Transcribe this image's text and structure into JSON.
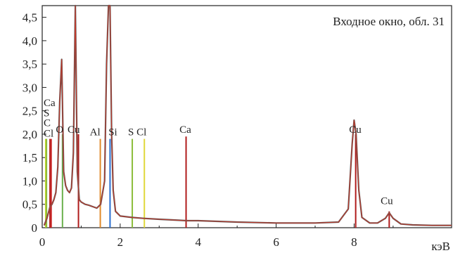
{
  "chart_data": {
    "type": "line",
    "title": "Входное окно, обл. 31",
    "xlabel": "кэВ",
    "ylabel": "",
    "xlim": [
      0,
      10.5
    ],
    "ylim": [
      0,
      4.75
    ],
    "x_ticks": [
      0,
      2,
      4,
      6,
      8
    ],
    "y_ticks": [
      0,
      0.5,
      1.0,
      1.5,
      2.0,
      2.5,
      3.0,
      3.5,
      4.0,
      4.5
    ],
    "x_tick_labels": [
      "0",
      "2",
      "4",
      "6",
      "8"
    ],
    "y_tick_labels": [
      "0",
      "0,5",
      "1,0",
      "1,5",
      "2,0",
      "2,5",
      "3,0",
      "3,5",
      "4,0",
      "4,5"
    ],
    "spectrum": {
      "x": [
        0.05,
        0.12,
        0.2,
        0.25,
        0.3,
        0.35,
        0.4,
        0.45,
        0.5,
        0.55,
        0.6,
        0.65,
        0.7,
        0.75,
        0.8,
        0.85,
        0.9,
        0.95,
        1.0,
        1.1,
        1.2,
        1.3,
        1.4,
        1.5,
        1.6,
        1.65,
        1.7,
        1.74,
        1.78,
        1.82,
        1.88,
        2.0,
        2.3,
        2.6,
        3.0,
        3.5,
        3.7,
        4.0,
        5.0,
        6.0,
        7.0,
        7.6,
        7.85,
        7.95,
        8.0,
        8.05,
        8.12,
        8.2,
        8.4,
        8.6,
        8.8,
        8.9,
        9.0,
        9.2,
        9.5,
        10.0,
        10.5
      ],
      "y": [
        0.05,
        0.2,
        0.45,
        0.5,
        0.6,
        0.75,
        1.3,
        2.7,
        3.6,
        1.2,
        0.9,
        0.8,
        0.75,
        0.85,
        1.6,
        4.8,
        1.2,
        0.6,
        0.55,
        0.5,
        0.48,
        0.45,
        0.42,
        0.5,
        1.0,
        3.5,
        4.8,
        4.8,
        2.0,
        0.8,
        0.35,
        0.25,
        0.22,
        0.2,
        0.18,
        0.16,
        0.15,
        0.15,
        0.12,
        0.1,
        0.1,
        0.12,
        0.4,
        1.8,
        2.3,
        2.0,
        0.8,
        0.22,
        0.1,
        0.1,
        0.2,
        0.32,
        0.2,
        0.08,
        0.06,
        0.05,
        0.05
      ]
    },
    "lines": [
      {
        "element": "C",
        "x": 0.09,
        "height": 1.9,
        "color": "#c9d52a"
      },
      {
        "element": "Ca",
        "x": 0.11,
        "height": 1.9,
        "color": "#8bbd3a"
      },
      {
        "element": "Cl",
        "x": 0.2,
        "height": 1.9,
        "color": "#b01c1c"
      },
      {
        "element": "S",
        "x": 0.23,
        "height": 1.9,
        "color": "#cc2a2a"
      },
      {
        "element": "O",
        "x": 0.52,
        "height": 2.0,
        "color": "#6ab04c"
      },
      {
        "element": "Cu",
        "x": 0.93,
        "height": 2.0,
        "color": "#b01c1c"
      },
      {
        "element": "Al",
        "x": 1.49,
        "height": 1.9,
        "color": "#e08a2a"
      },
      {
        "element": "Si",
        "x": 1.74,
        "height": 1.9,
        "color": "#2a6fd0"
      },
      {
        "element": "S",
        "x": 2.31,
        "height": 1.9,
        "color": "#8bbd3a"
      },
      {
        "element": "Cl",
        "x": 2.62,
        "height": 1.9,
        "color": "#e0d83a"
      },
      {
        "element": "Ca",
        "x": 3.69,
        "height": 1.95,
        "color": "#b01c1c"
      },
      {
        "element": "Cu",
        "x": 8.04,
        "height": 2.0,
        "color": "#b01c1c"
      },
      {
        "element": "Cu",
        "x": 8.9,
        "height": 0.35,
        "color": "#b01c1c"
      }
    ],
    "labels": [
      {
        "text": "Ca",
        "x": 0.0,
        "y": 2.6
      },
      {
        "text": "S",
        "x": 0.0,
        "y": 2.38
      },
      {
        "text": "C",
        "x": 0.03,
        "y": 2.17
      },
      {
        "text": "Cl",
        "x": 0.0,
        "y": 1.95
      },
      {
        "text": "O",
        "x": 0.35,
        "y": 2.03
      },
      {
        "text": "Cu",
        "x": 0.65,
        "y": 2.03
      },
      {
        "text": "Al",
        "x": 1.22,
        "y": 1.98
      },
      {
        "text": "Si",
        "x": 1.7,
        "y": 1.98
      },
      {
        "text": "S",
        "x": 2.2,
        "y": 1.98
      },
      {
        "text": "Cl",
        "x": 2.42,
        "y": 1.98
      },
      {
        "text": "Ca",
        "x": 3.52,
        "y": 2.03
      },
      {
        "text": "Cu",
        "x": 7.87,
        "y": 2.03
      },
      {
        "text": "Cu",
        "x": 8.68,
        "y": 0.5
      }
    ],
    "grid": false,
    "title_position": "top-right"
  }
}
